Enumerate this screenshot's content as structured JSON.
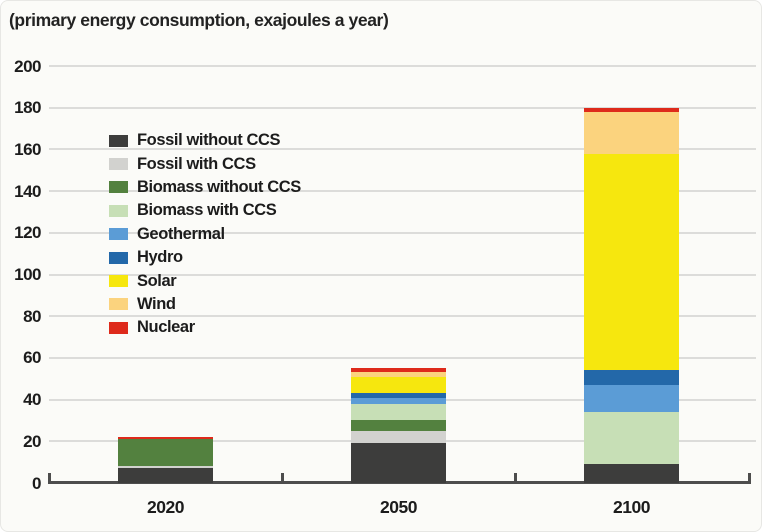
{
  "title": "(primary energy consumption, exajoules a year)",
  "chart_data": {
    "type": "bar",
    "stacked": true,
    "title": "(primary energy consumption, exajoules a year)",
    "xlabel": "",
    "ylabel": "",
    "categories": [
      "2020",
      "2050",
      "2100"
    ],
    "series": [
      {
        "name": "Fossil without CCS",
        "color": "#3d3d3c",
        "values": [
          7,
          19,
          9
        ]
      },
      {
        "name": "Fossil with CCS",
        "color": "#d2d2cf",
        "values": [
          1,
          6,
          0
        ]
      },
      {
        "name": "Biomass without CCS",
        "color": "#53813f",
        "values": [
          13,
          5,
          0
        ]
      },
      {
        "name": "Biomass with CCS",
        "color": "#c7dfb6",
        "values": [
          0,
          8,
          25
        ]
      },
      {
        "name": "Geothermal",
        "color": "#5b9cd6",
        "values": [
          0,
          3,
          13
        ]
      },
      {
        "name": "Hydro",
        "color": "#2368a9",
        "values": [
          0,
          2,
          7
        ]
      },
      {
        "name": "Solar",
        "color": "#f6e70e",
        "values": [
          0,
          8,
          104
        ]
      },
      {
        "name": "Wind",
        "color": "#fbd37e",
        "values": [
          0,
          2,
          20
        ]
      },
      {
        "name": "Nuclear",
        "color": "#de2a1b",
        "values": [
          1,
          2,
          2
        ]
      }
    ],
    "totals": [
      22,
      55,
      180
    ],
    "ylim": [
      0,
      200
    ],
    "yticks": [
      0,
      20,
      40,
      60,
      80,
      100,
      120,
      140,
      160,
      180,
      200
    ],
    "grid": true,
    "legend_position": "inside-top-left"
  }
}
